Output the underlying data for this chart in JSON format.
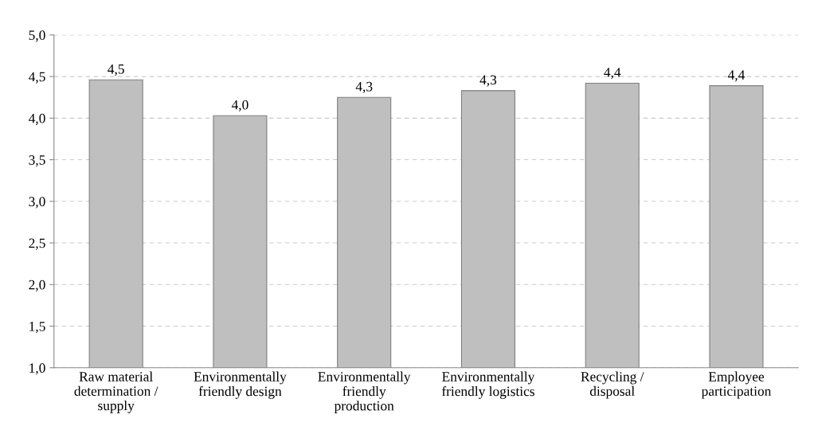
{
  "chart_data": {
    "type": "bar",
    "categories": [
      "Raw material\ndetermination /\nsupply",
      "Environmentally\nfriendly design",
      "Environmentally\nfriendly\nproduction",
      "Environmentally\nfriendly logistics",
      "Recycling /\ndisposal",
      "Employee\nparticipation"
    ],
    "values": [
      4.46,
      4.03,
      4.25,
      4.33,
      4.42,
      4.39
    ],
    "value_labels": [
      "4,5",
      "4,0",
      "4,3",
      "4,3",
      "4,4",
      "4,4"
    ],
    "color": "#bfbfbf",
    "ylim": [
      1.0,
      5.0
    ],
    "yticks": [
      {
        "value": 1.0,
        "label": "1,0"
      },
      {
        "value": 1.5,
        "label": "1,5"
      },
      {
        "value": 2.0,
        "label": "2,0"
      },
      {
        "value": 2.5,
        "label": "2,5"
      },
      {
        "value": 3.0,
        "label": "3,0"
      },
      {
        "value": 3.5,
        "label": "3,5"
      },
      {
        "value": 4.0,
        "label": "4,0"
      },
      {
        "value": 4.5,
        "label": "4,5"
      },
      {
        "value": 5.0,
        "label": "5,0"
      }
    ],
    "grid": "y"
  }
}
